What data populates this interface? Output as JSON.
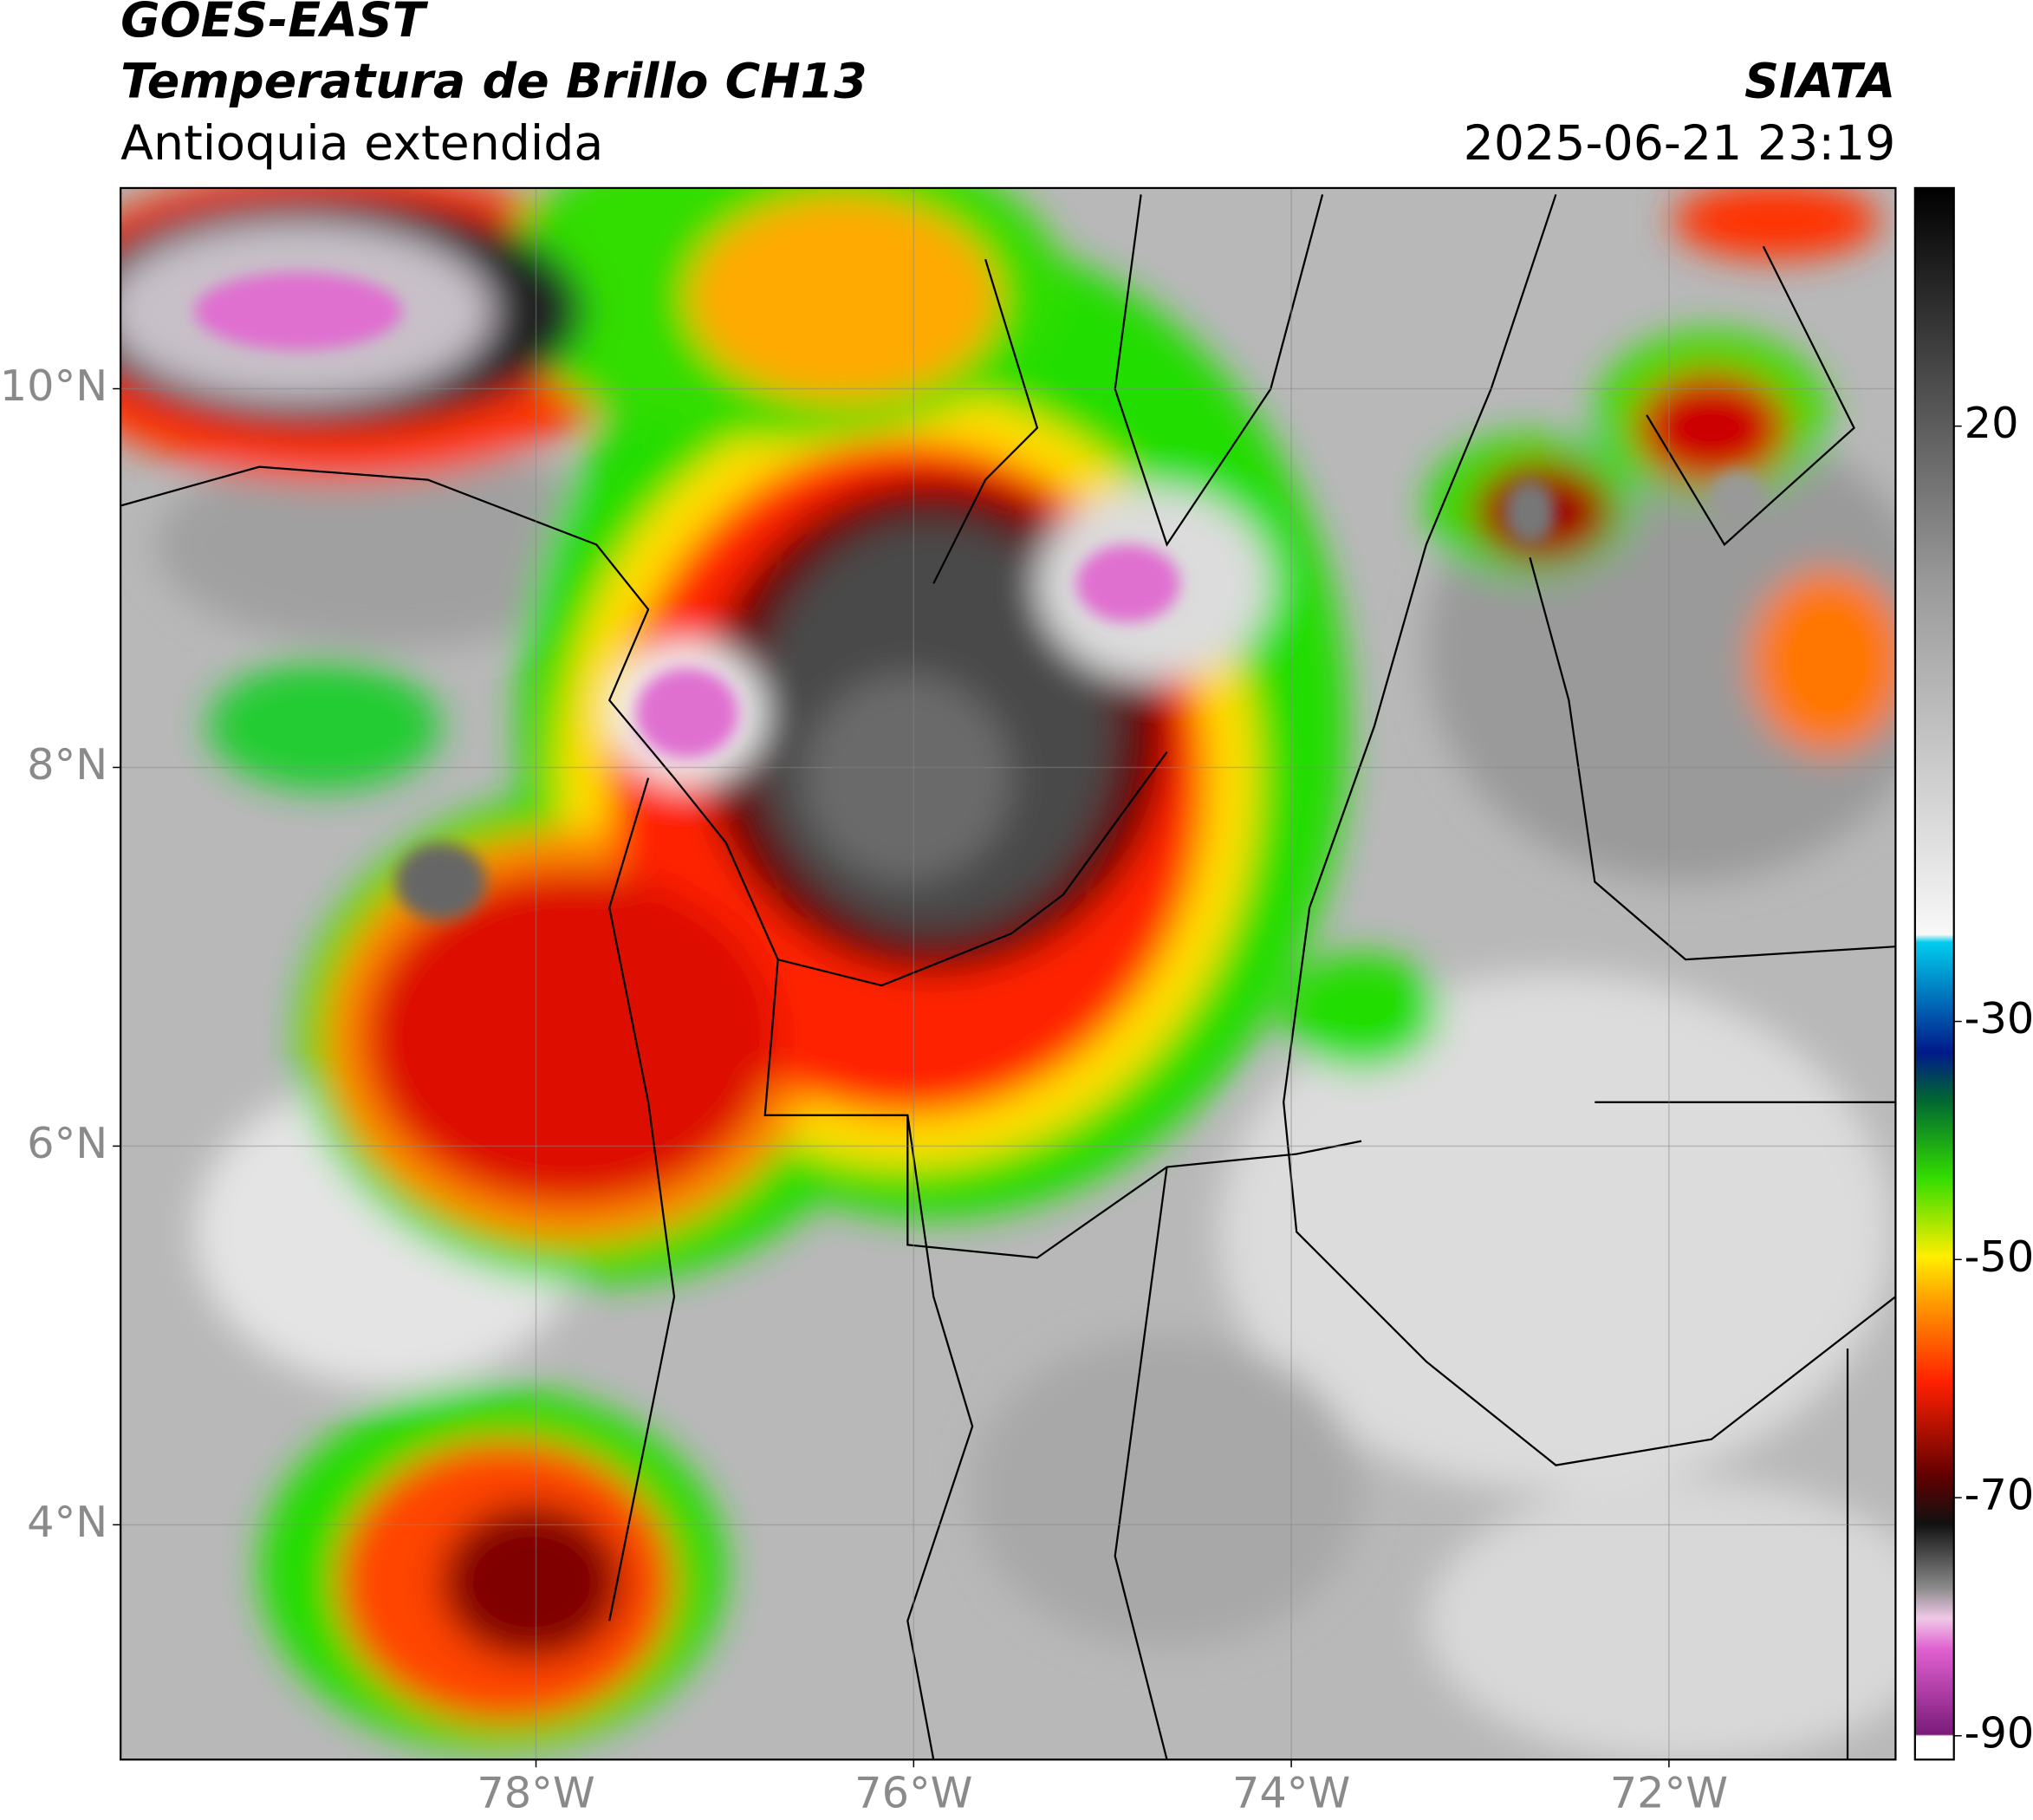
{
  "header": {
    "title": "GOES-EAST",
    "subtitle": "Temperatura de Brillo CH13",
    "region": "Antioquia extendida",
    "source": "SIATA",
    "datetime": "2025-06-21 23:19"
  },
  "map": {
    "xlim": [
      -80.2,
      -70.8
    ],
    "ylim": [
      2.76,
      11.06
    ],
    "xticks": [
      {
        "value": -78,
        "label": "78°W"
      },
      {
        "value": -76,
        "label": "76°W"
      },
      {
        "value": -74,
        "label": "74°W"
      },
      {
        "value": -72,
        "label": "72°W"
      }
    ],
    "yticks": [
      {
        "value": 10,
        "label": "10°N"
      },
      {
        "value": 8,
        "label": "8°N"
      },
      {
        "value": 6,
        "label": "6°N"
      },
      {
        "value": 4,
        "label": "4°N"
      }
    ],
    "grid": true
  },
  "colorbar": {
    "ylim": [
      -92,
      40
    ],
    "yticks": [
      20,
      -30,
      -50,
      -70,
      -90
    ]
  }
}
